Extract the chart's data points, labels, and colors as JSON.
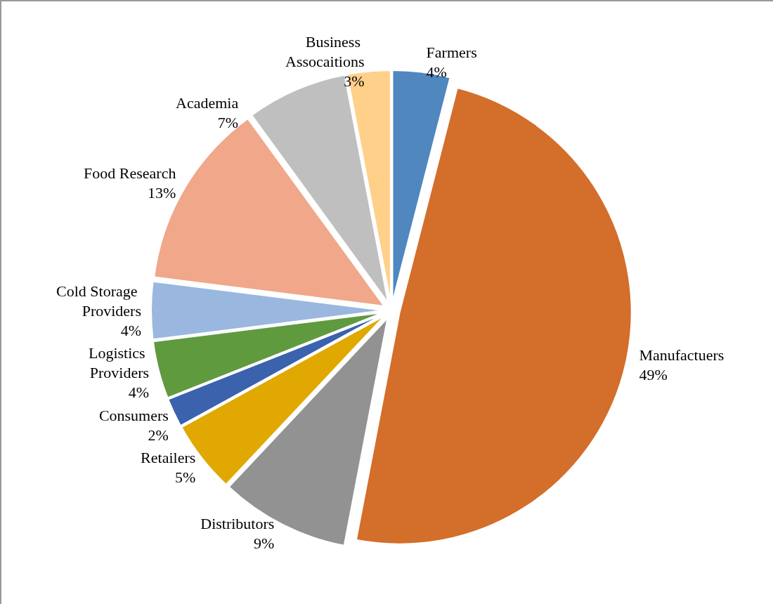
{
  "chart_data": {
    "type": "pie",
    "categories": [
      "Farmers",
      "Manufactuers",
      "Distributors",
      "Retailers",
      "Consumers",
      "Logistics Providers",
      "Cold Storage Providers",
      "Food Research",
      "Academia",
      "Business Assocaitions"
    ],
    "values": [
      4,
      49,
      9,
      5,
      2,
      4,
      4,
      13,
      7,
      3
    ],
    "value_labels": [
      "4%",
      "49%",
      "9%",
      "5%",
      "2%",
      "4%",
      "4%",
      "13%",
      "7%",
      "3%"
    ],
    "colors": [
      "#4f87be",
      "#d36e2b",
      "#929292",
      "#e0a800",
      "#3a62ad",
      "#5f9a3f",
      "#9ab8df",
      "#f0a78a",
      "#bfbfbf",
      "#ffd08a"
    ],
    "legend": false
  }
}
